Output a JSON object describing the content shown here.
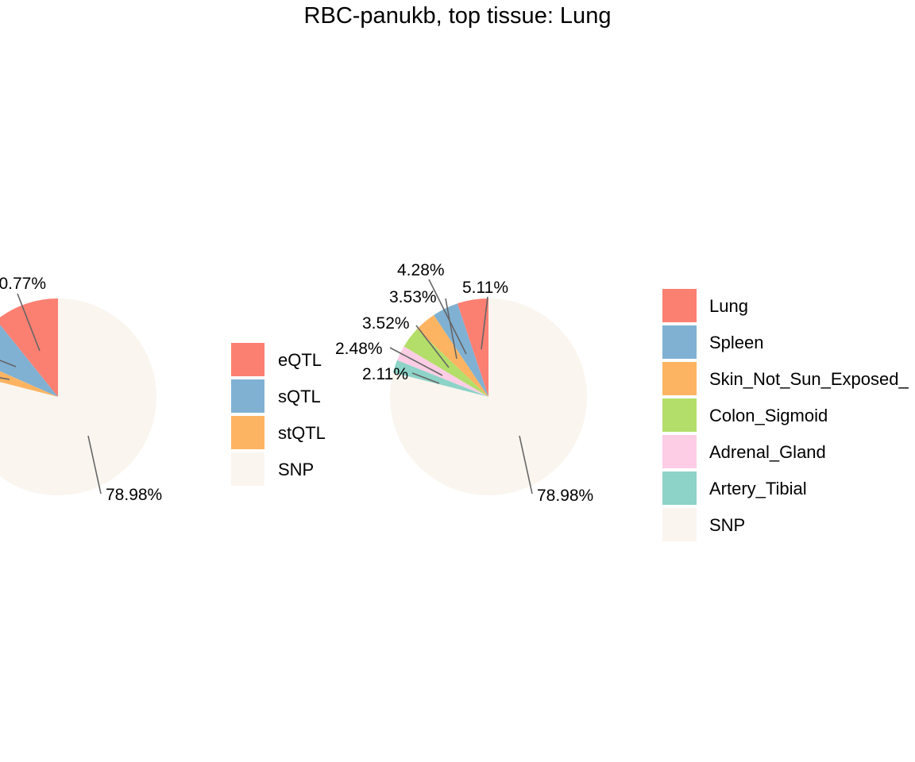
{
  "title": "RBC-panukb, top tissue: Lung",
  "chart_data": [
    {
      "type": "pie",
      "name": "QTL type",
      "slices": [
        {
          "label": "eQTL",
          "color": "#FB8072"
        },
        {
          "label": "sQTL",
          "color": "#80B1D3"
        },
        {
          "label": "stQTL",
          "color": "#FDB462"
        },
        {
          "label": "SNP",
          "color": "#FAF5EF",
          "value": 78.98,
          "value_label": "78.98%"
        }
      ],
      "visible_labels": [
        {
          "text": "0.77%"
        },
        {
          "text": "78.98%"
        }
      ]
    },
    {
      "type": "pie",
      "name": "Tissue",
      "slices": [
        {
          "label": "Lung",
          "color": "#FB8072",
          "value": 5.11,
          "value_label": "5.11%"
        },
        {
          "label": "Spleen",
          "color": "#80B1D3",
          "value": 4.28,
          "value_label": "4.28%"
        },
        {
          "label": "Skin_Not_Sun_Exposed_",
          "color": "#FDB462",
          "value": 3.53,
          "value_label": "3.53%"
        },
        {
          "label": "Colon_Sigmoid",
          "color": "#B3DE69",
          "value": 3.52,
          "value_label": "3.52%"
        },
        {
          "label": "Adrenal_Gland",
          "color": "#FCCDE5",
          "value": 2.48,
          "value_label": "2.48%"
        },
        {
          "label": "Artery_Tibial",
          "color": "#8DD3C7",
          "value": 2.11,
          "value_label": "2.11%"
        },
        {
          "label": "SNP",
          "color": "#FAF5EF",
          "value": 78.98,
          "value_label": "78.98%"
        }
      ]
    }
  ]
}
